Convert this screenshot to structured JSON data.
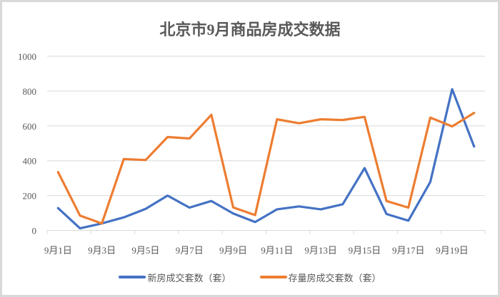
{
  "chart_data": {
    "type": "line",
    "title": "北京市9月商品房成交数据",
    "xlabel": "",
    "ylabel": "",
    "ylim": [
      0,
      1000
    ],
    "yticks": [
      0,
      200,
      400,
      600,
      800,
      1000
    ],
    "grid": true,
    "legend_position": "bottom",
    "categories": [
      "9月1日",
      "9月2日",
      "9月3日",
      "9月4日",
      "9月5日",
      "9月6日",
      "9月7日",
      "9月8日",
      "9月9日",
      "9月10日",
      "9月11日",
      "9月12日",
      "9月13日",
      "9月14日",
      "9月15日",
      "9月16日",
      "9月17日",
      "9月18日",
      "9月19日",
      "9月20日"
    ],
    "xtick_labels": [
      "9月1日",
      "9月3日",
      "9月5日",
      "9月7日",
      "9月9日",
      "9月11日",
      "9月13日",
      "9月15日",
      "9月17日",
      "9月19日"
    ],
    "series": [
      {
        "name": "新房成交套数（套）",
        "color": "#4472c4",
        "values": [
          128,
          12,
          40,
          75,
          124,
          200,
          131,
          169,
          97,
          48,
          121,
          138,
          121,
          150,
          358,
          94,
          56,
          278,
          811,
          482
        ]
      },
      {
        "name": "存量房成交套数（套）",
        "color": "#ed7d31",
        "values": [
          335,
          85,
          40,
          410,
          404,
          536,
          528,
          664,
          132,
          88,
          638,
          615,
          638,
          634,
          652,
          169,
          131,
          648,
          597,
          675
        ]
      }
    ]
  },
  "legend": {
    "new_label": "新房成交套数（套）",
    "resale_label": "存量房成交套数（套）"
  }
}
